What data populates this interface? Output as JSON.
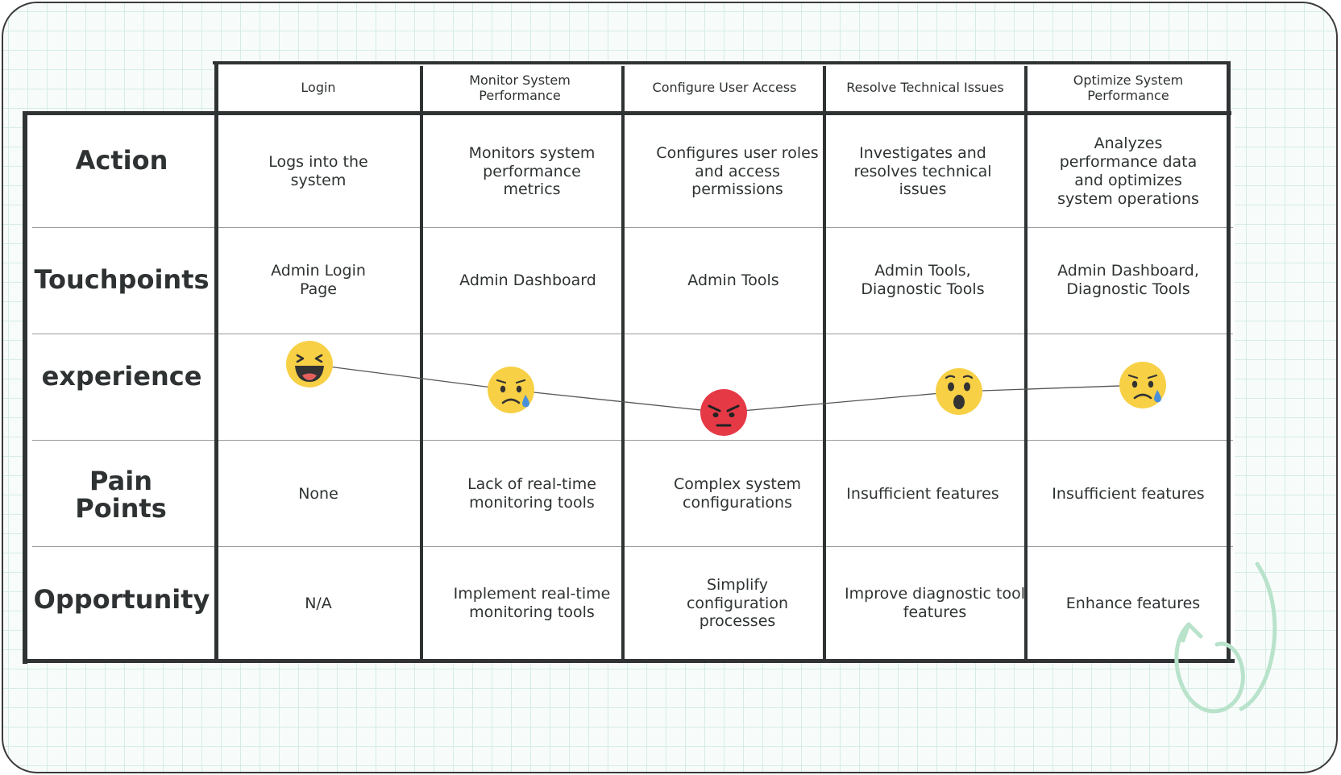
{
  "columns": [
    {
      "header": "Login",
      "action": "Logs into the system",
      "touchpoints": "Admin Login Page",
      "experience": "laughing",
      "pain_points": "None",
      "opportunity": "N/A"
    },
    {
      "header": "Monitor System Performance",
      "action": "Monitors system performance metrics",
      "touchpoints": "Admin Dashboard",
      "experience": "sad",
      "pain_points": "Lack of real-time monitoring tools",
      "opportunity": "Implement real-time monitoring tools"
    },
    {
      "header": "Configure User Access",
      "action": "Configures user roles and access permissions",
      "touchpoints": "Admin Tools",
      "experience": "angry",
      "pain_points": "Complex system configurations",
      "opportunity": "Simplify configuration processes"
    },
    {
      "header": "Resolve Technical Issues",
      "action": "Investigates and resolves technical issues",
      "touchpoints": "Admin Tools, Diagnostic Tools",
      "experience": "surprised",
      "pain_points": "Insufficient features",
      "opportunity": "Improve diagnostic tool features"
    },
    {
      "header": "Optimize System Performance",
      "action": "Analyzes performance data and optimizes system operations",
      "touchpoints": "Admin Dashboard, Diagnostic Tools",
      "experience": "sad",
      "pain_points": "Insufficient features",
      "opportunity": "Enhance features"
    }
  ],
  "rows": {
    "action": "Action",
    "touchpoints": "Touchpoints",
    "experience": "experience",
    "pain_points": "Pain Points",
    "opportunity": "Opportunity"
  },
  "colors": {
    "grid_line": "#d5ece4",
    "canvas_bg": "#f7fcfa",
    "table_stroke": "#2f3334",
    "emoji_yellow": "#f7d046",
    "emoji_red": "#e63946",
    "tear_blue": "#4a90d9",
    "deco_green": "#b9e2cb"
  }
}
